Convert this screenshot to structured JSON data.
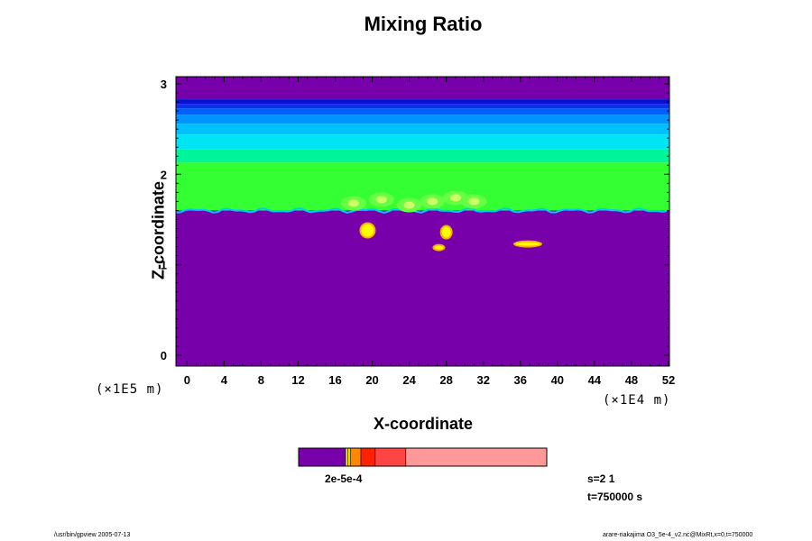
{
  "chart_data": {
    "type": "heatmap",
    "title": "Mixing Ratio",
    "xlabel": "X-coordinate",
    "ylabel": "Z-coordinate",
    "x_scale_label": "(×1E4 m)",
    "y_scale_label": "(×1E5 m)",
    "xlim": [
      -1.2,
      52.1
    ],
    "ylim": [
      -0.12,
      3.08
    ],
    "x_ticks": [
      "0",
      "4",
      "8",
      "12",
      "16",
      "20",
      "24",
      "28",
      "32",
      "36",
      "40",
      "44",
      "48",
      "52"
    ],
    "y_ticks": [
      "0",
      "1",
      "2",
      "3"
    ],
    "layers_z": [
      {
        "z0": 2.83,
        "z1": 3.08,
        "color": "#7700aa"
      },
      {
        "z0": 2.78,
        "z1": 2.83,
        "color": "#0a10d0"
      },
      {
        "z0": 2.73,
        "z1": 2.78,
        "color": "#1030e8"
      },
      {
        "z0": 2.66,
        "z1": 2.73,
        "color": "#0060ff"
      },
      {
        "z0": 2.56,
        "z1": 2.66,
        "color": "#0094ff"
      },
      {
        "z0": 2.44,
        "z1": 2.56,
        "color": "#00c0ff"
      },
      {
        "z0": 2.28,
        "z1": 2.44,
        "color": "#00e4f4"
      },
      {
        "z0": 2.13,
        "z1": 2.28,
        "color": "#00f49a"
      },
      {
        "z0": 1.6,
        "z1": 2.13,
        "color": "#33ff33"
      },
      {
        "z0": -0.12,
        "z1": 1.6,
        "color": "#7700aa"
      }
    ],
    "blobs": [
      {
        "x": 19.5,
        "z": 1.38,
        "color": "#ffff00"
      },
      {
        "x": 27.2,
        "z": 1.19,
        "color": "#ffff00"
      },
      {
        "x": 28.0,
        "z": 1.36,
        "color": "#ffff00"
      },
      {
        "x": 36.8,
        "z": 1.23,
        "color": "#ffff00"
      }
    ],
    "colorbar": {
      "colors": [
        "#7700aa",
        "#ffff00",
        "#ffcc00",
        "#ff8800",
        "#ff2200",
        "#ff4444",
        "#ff9999"
      ],
      "labels": "2e-5e-4"
    }
  },
  "info": {
    "s_label": "s=2 1",
    "t_label": "t=750000 s"
  },
  "footer": {
    "left": "/usr/bin/gpview 2005-07-13",
    "right": "arare-nakajima O3_5e-4_v2.nc@MixRt,x=0,t=750000"
  }
}
